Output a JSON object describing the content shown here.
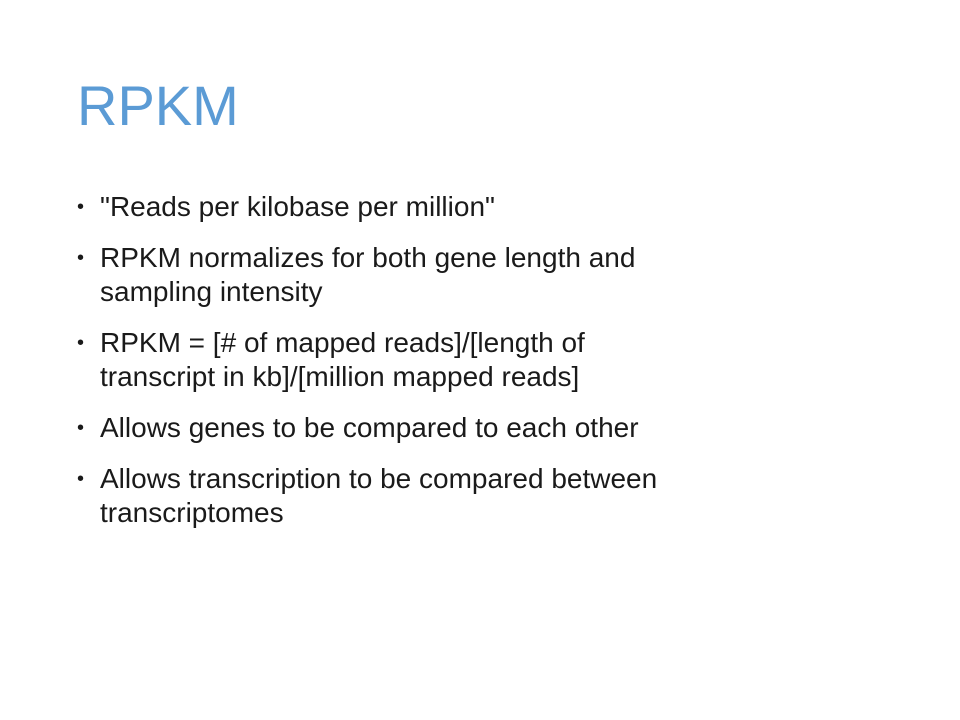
{
  "slide": {
    "title": "RPKM",
    "bullet_symbol": "•",
    "bullets": [
      "\"Reads per kilobase per million\"",
      "RPKM normalizes for both gene length and\nsampling intensity",
      "RPKM = [# of mapped reads]/[length of\ntranscript in kb]/[million mapped reads]",
      "Allows genes to be compared to each other",
      "Allows transcription to be compared between\ntranscriptomes"
    ]
  },
  "colors": {
    "title": "#5b9bd5",
    "body_text": "#1a1a1a",
    "background": "#ffffff"
  }
}
